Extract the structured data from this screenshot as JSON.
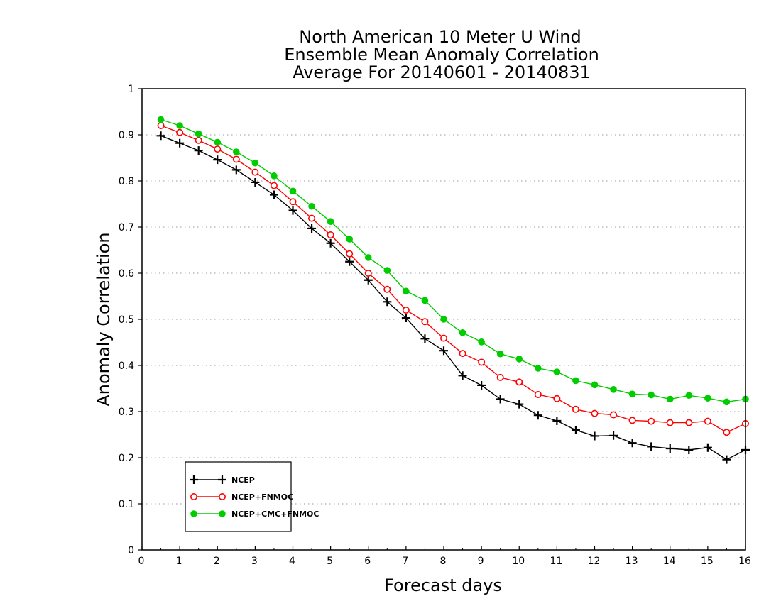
{
  "chart_data": {
    "type": "line",
    "title_lines": [
      "North American 10 Meter U Wind",
      "Ensemble Mean Anomaly Correlation",
      "Average For 20140601 - 20140831"
    ],
    "xlabel": "Forecast days",
    "ylabel": "Anomaly Correlation",
    "xlim": [
      0,
      16
    ],
    "ylim": [
      0,
      1
    ],
    "x_ticks": [
      0,
      1,
      2,
      3,
      4,
      5,
      6,
      7,
      8,
      9,
      10,
      11,
      12,
      13,
      14,
      15,
      16
    ],
    "y_ticks": [
      0,
      0.1,
      0.2,
      0.3,
      0.4,
      0.5,
      0.6,
      0.7,
      0.8,
      0.9,
      1
    ],
    "y_tick_labels": [
      "0",
      "0.1",
      "0.2",
      "0.3",
      "0.4",
      "0.5",
      "0.6",
      "0.7",
      "0.8",
      "0.9",
      "1"
    ],
    "grid": "horizontal dotted",
    "legend_position": "bottom-left",
    "x": [
      0.5,
      1,
      1.5,
      2,
      2.5,
      3,
      3.5,
      4,
      4.5,
      5,
      5.5,
      6,
      6.5,
      7,
      7.5,
      8,
      8.5,
      9,
      9.5,
      10,
      10.5,
      11,
      11.5,
      12,
      12.5,
      13,
      13.5,
      14,
      14.5,
      15,
      15.5,
      16
    ],
    "series": [
      {
        "name": "NCEP",
        "marker": "plus",
        "color": "#000000",
        "values": [
          0.898,
          0.882,
          0.866,
          0.846,
          0.824,
          0.797,
          0.77,
          0.736,
          0.697,
          0.665,
          0.625,
          0.585,
          0.538,
          0.503,
          0.458,
          0.432,
          0.378,
          0.357,
          0.327,
          0.316,
          0.292,
          0.28,
          0.26,
          0.247,
          0.248,
          0.232,
          0.224,
          0.22,
          0.217,
          0.222,
          0.196,
          0.217
        ]
      },
      {
        "name": "NCEP+FNMOC",
        "marker": "open-circle",
        "color": "#ff0000",
        "values": [
          0.92,
          0.905,
          0.888,
          0.869,
          0.847,
          0.819,
          0.79,
          0.755,
          0.719,
          0.683,
          0.642,
          0.6,
          0.565,
          0.52,
          0.495,
          0.459,
          0.426,
          0.407,
          0.374,
          0.364,
          0.337,
          0.328,
          0.305,
          0.296,
          0.293,
          0.281,
          0.279,
          0.276,
          0.276,
          0.279,
          0.255,
          0.274
        ]
      },
      {
        "name": "NCEP+CMC+FNMOC",
        "marker": "filled-circle",
        "color": "#00cc00",
        "values": [
          0.933,
          0.92,
          0.902,
          0.884,
          0.863,
          0.839,
          0.811,
          0.778,
          0.745,
          0.712,
          0.674,
          0.634,
          0.606,
          0.561,
          0.541,
          0.5,
          0.471,
          0.451,
          0.425,
          0.414,
          0.394,
          0.386,
          0.367,
          0.358,
          0.348,
          0.338,
          0.336,
          0.327,
          0.335,
          0.329,
          0.321,
          0.327
        ]
      }
    ]
  }
}
